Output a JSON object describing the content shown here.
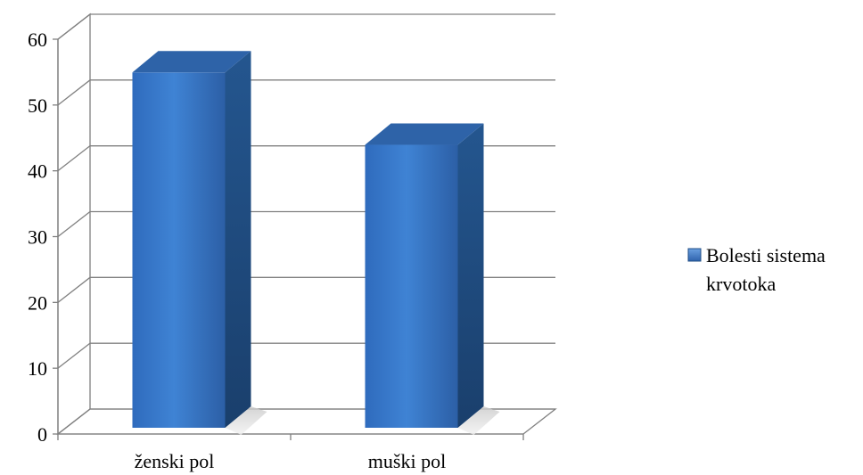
{
  "chart_data": {
    "type": "bar",
    "style": "3d-column",
    "categories": [
      "ženski pol",
      "muški pol"
    ],
    "series": [
      {
        "name": "Bolesti sistema krvotoka",
        "values": [
          54,
          43
        ],
        "color": "#3a78c9"
      }
    ],
    "ylim": [
      0,
      60
    ],
    "yticks": [
      "0",
      "10",
      "20",
      "30",
      "40",
      "50",
      "60"
    ],
    "grid": true,
    "legend_position": "right",
    "legend_lines": [
      "Bolesti sistema",
      "krvotoka"
    ],
    "colors": {
      "bar_front_top": "#3f83d4",
      "bar_front_bottom": "#2f63ad",
      "bar_side": "#1f4d86",
      "bar_top": "#2e63a8",
      "grid": "#808080",
      "wall": "#ffffff"
    }
  }
}
